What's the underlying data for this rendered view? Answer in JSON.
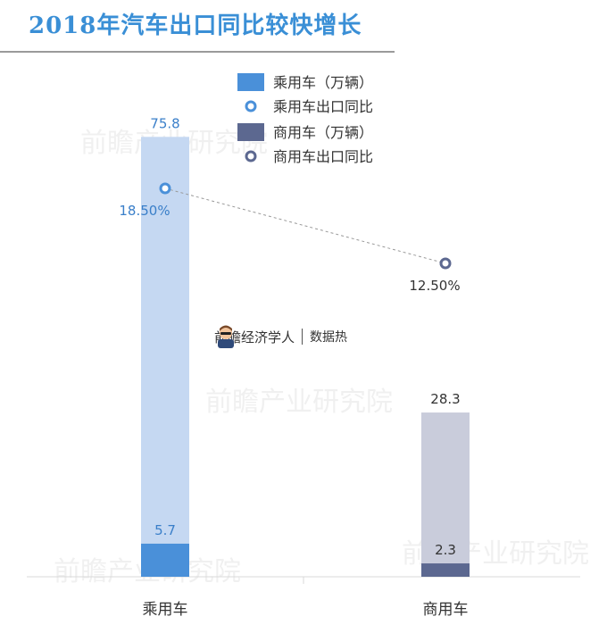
{
  "title": "2018年汽车出口同比较快增长",
  "legend": [
    {
      "label": "乘用车（万辆）",
      "kind": "bar",
      "color": "#4a90d9"
    },
    {
      "label": "乘用车出口同比",
      "kind": "marker",
      "color": "#4a90d9"
    },
    {
      "label": "商用车（万辆）",
      "kind": "bar",
      "color": "#5c6890"
    },
    {
      "label": "商用车出口同比",
      "kind": "marker",
      "color": "#5c6890"
    }
  ],
  "branding": {
    "name": "前瞻经济学人",
    "subtitle": "数据热"
  },
  "watermark": "前瞻产业研究院",
  "chart_data": {
    "type": "bar",
    "categories": [
      "乘用车",
      "商用车"
    ],
    "series": [
      {
        "name": "乘用车（万辆）",
        "values": [
          75.8,
          5.7
        ],
        "labels": [
          "75.8",
          "5.7"
        ],
        "colors": [
          "#c5d8f2",
          "#4a90d9"
        ]
      },
      {
        "name": "商用车（万辆）",
        "values": [
          28.3,
          2.3
        ],
        "labels": [
          "28.3",
          "2.3"
        ],
        "colors": [
          "#c9ccdb",
          "#5c6890"
        ]
      }
    ],
    "line_series": {
      "values": [
        18.5,
        12.5
      ],
      "labels": [
        "18.50%",
        "12.50%"
      ],
      "colors": [
        "#4a90d9",
        "#5c6890"
      ]
    },
    "ylim": [
      0,
      80
    ],
    "grid": false,
    "legend_position": "top-right"
  }
}
